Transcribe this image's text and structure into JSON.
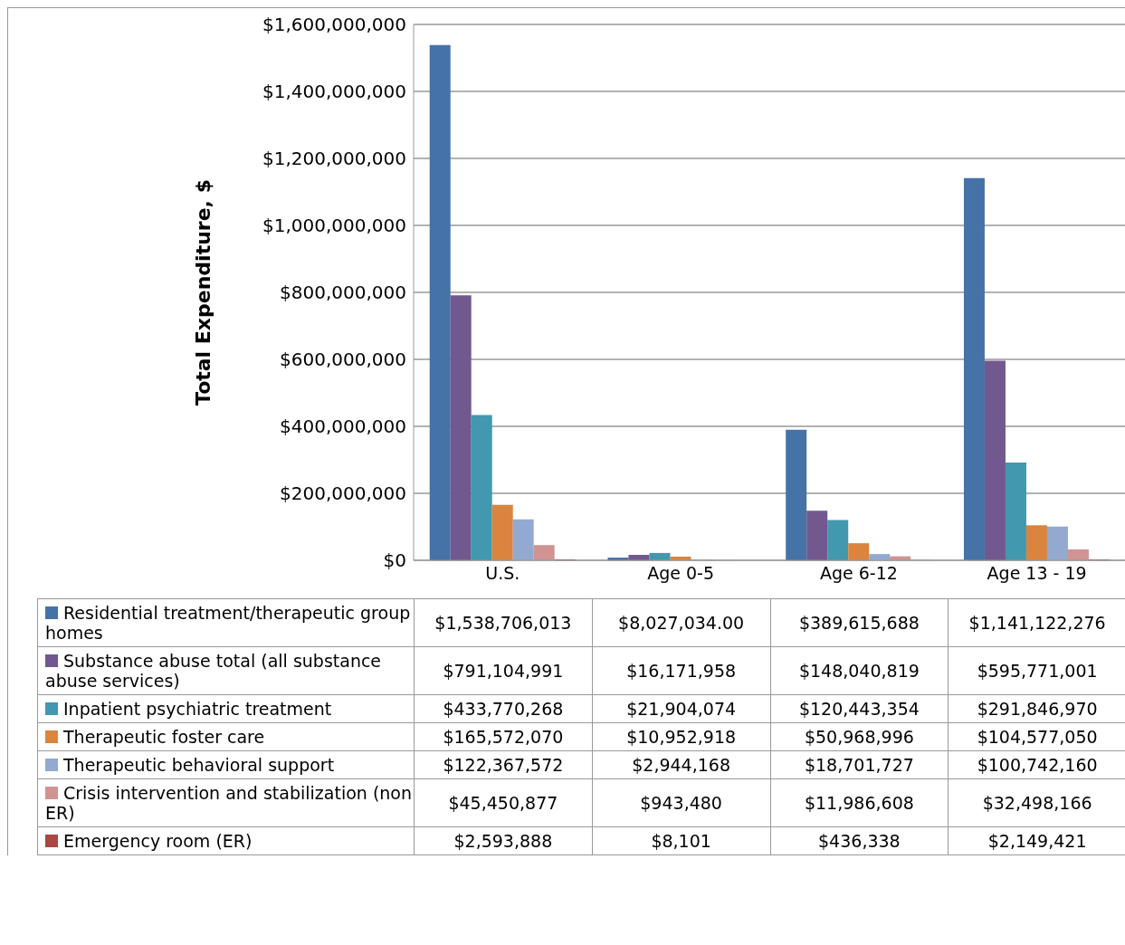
{
  "chart_data": {
    "type": "bar",
    "ylabel": "Total Expenditure, $",
    "categories": [
      "U.S.",
      "Age 0-5",
      "Age 6-12",
      "Age 13 - 19"
    ],
    "ylim": [
      0,
      1600000000
    ],
    "yticks": [
      {
        "value": 0,
        "label": "$0"
      },
      {
        "value": 200000000,
        "label": "$200,000,000"
      },
      {
        "value": 400000000,
        "label": "$400,000,000"
      },
      {
        "value": 600000000,
        "label": "$600,000,000"
      },
      {
        "value": 800000000,
        "label": "$800,000,000"
      },
      {
        "value": 1000000000,
        "label": "$1,000,000,000"
      },
      {
        "value": 1200000000,
        "label": "$1,200,000,000"
      },
      {
        "value": 1400000000,
        "label": "$1,400,000,000"
      },
      {
        "value": 1600000000,
        "label": "$1,600,000,000"
      }
    ],
    "grid": "y",
    "legend": "bottom",
    "series": [
      {
        "name": "Residential treatment/therapeutic group homes",
        "color": "#4572a7",
        "values": [
          1538706013,
          8027034,
          389615688,
          1141122276
        ],
        "value_labels": [
          "$1,538,706,013",
          "$8,027,034.00",
          "$389,615,688",
          "$1,141,122,276"
        ]
      },
      {
        "name": "Substance abuse total (all substance abuse services)",
        "color": "#71588f",
        "values": [
          791104991,
          16171958,
          148040819,
          595771001
        ],
        "value_labels": [
          "$791,104,991",
          "$16,171,958",
          "$148,040,819",
          "$595,771,001"
        ]
      },
      {
        "name": "Inpatient psychiatric treatment",
        "color": "#4198af",
        "values": [
          433770268,
          21904074,
          120443354,
          291846970
        ],
        "value_labels": [
          "$433,770,268",
          "$21,904,074",
          "$120,443,354",
          "$291,846,970"
        ]
      },
      {
        "name": "Therapeutic foster care",
        "color": "#db843d",
        "values": [
          165572070,
          10952918,
          50968996,
          104577050
        ],
        "value_labels": [
          "$165,572,070",
          "$10,952,918",
          "$50,968,996",
          "$104,577,050"
        ]
      },
      {
        "name": "Therapeutic behavioral support",
        "color": "#93a9cf",
        "values": [
          122367572,
          2944168,
          18701727,
          100742160
        ],
        "value_labels": [
          "$122,367,572",
          "$2,944,168",
          "$18,701,727",
          "$100,742,160"
        ]
      },
      {
        "name": "Crisis intervention and stabilization (non ER)",
        "color": "#d19392",
        "values": [
          45450877,
          943480,
          11986608,
          32498166
        ],
        "value_labels": [
          "$45,450,877",
          "$943,480",
          "$11,986,608",
          "$32,498,166"
        ]
      },
      {
        "name": "Emergency room (ER)",
        "color": "#aa4643",
        "values": [
          2593888,
          8101,
          436338,
          2149421
        ],
        "value_labels": [
          "$2,593,888",
          "$8,101",
          "$436,338",
          "$2,149,421"
        ]
      }
    ]
  }
}
